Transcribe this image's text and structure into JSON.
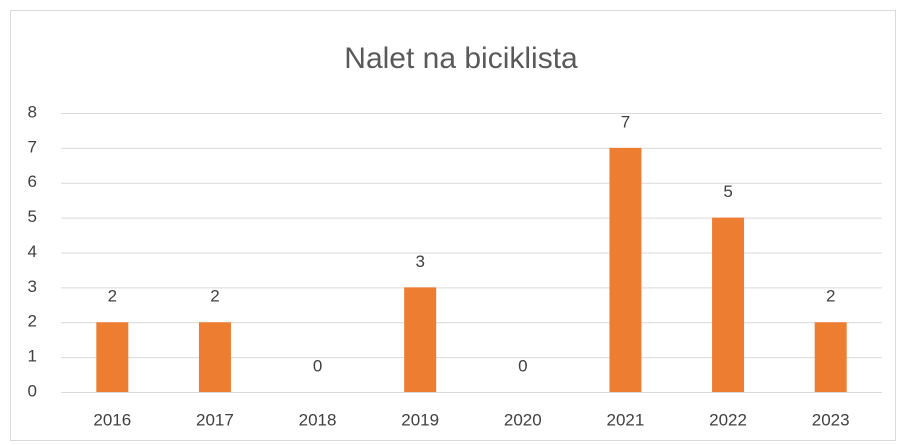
{
  "chart_data": {
    "type": "bar",
    "title": "Nalet na biciklista",
    "categories": [
      "2016",
      "2017",
      "2018",
      "2019",
      "2020",
      "2021",
      "2022",
      "2023"
    ],
    "values": [
      2,
      2,
      0,
      3,
      0,
      7,
      5,
      2
    ],
    "color": "#ed7d31",
    "ylim": [
      0,
      8
    ],
    "yticks": [
      0,
      1,
      2,
      3,
      4,
      5,
      6,
      7,
      8
    ],
    "grid": true,
    "data_labels": true
  }
}
